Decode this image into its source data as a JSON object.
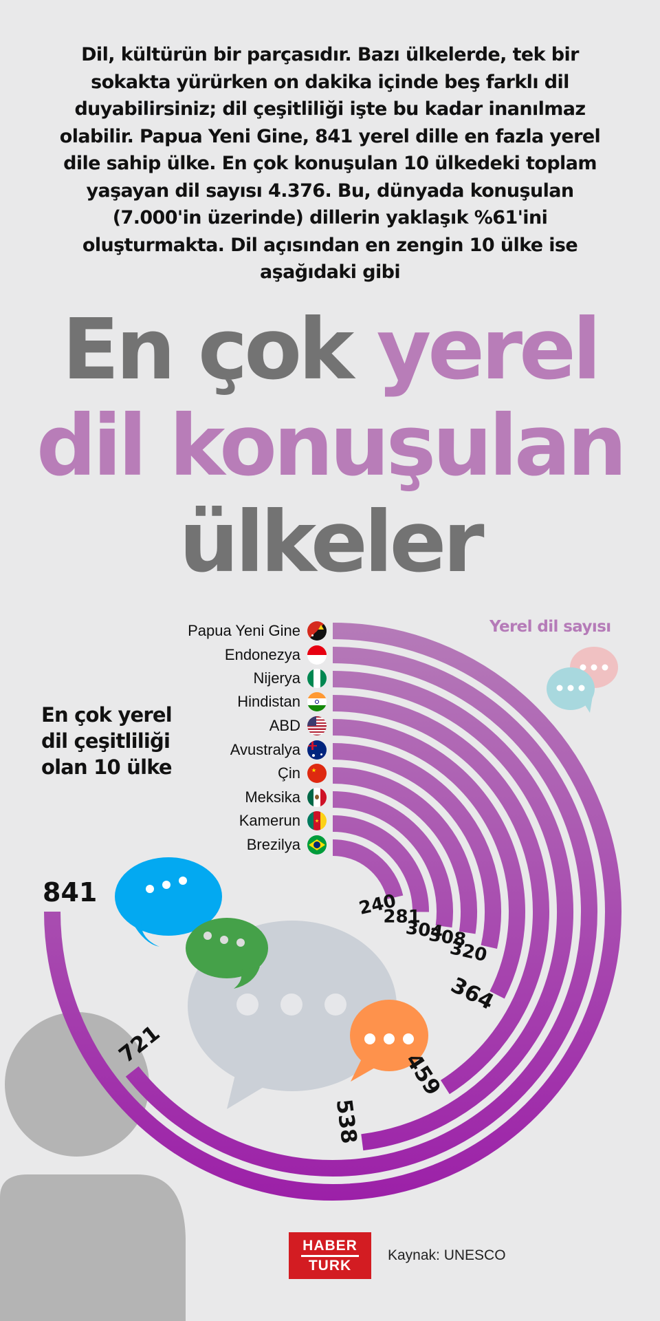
{
  "intro": {
    "text": "Dil, kültürün bir parçasıdır.  Bazı ülkelerde, tek bir sokakta yürürken on dakika içinde beş farklı dil duyabilirsiniz; dil çeşitliliği işte bu kadar inanılmaz olabilir. Papua Yeni Gine, 841 yerel dille en fazla yerel dile sahip ülke. En çok konuşulan 10 ülkedeki toplam yaşayan dil sayısı 4.376. Bu, dünyada konuşulan (7.000'in üzerinde) dillerin yaklaşık %61'ini oluşturmakta. Dil açısından en zengin 10 ülke ise aşağıdaki gibi"
  },
  "title": {
    "line1_gray": "En çok",
    "line1_pink": "yerel",
    "line2_pink": "dil konuşulan",
    "line3_gray": "ülkeler"
  },
  "side_heading": {
    "line1": "En çok yerel",
    "line2": "dil çeşitliliği",
    "line3": "olan 10 ülke"
  },
  "legend_title": "Yerel dil sayısı",
  "colors": {
    "background": "#e9e9ea",
    "title_gray": "#737373",
    "title_pink": "#b87db8",
    "arc_top": "#b57bb8",
    "arc_bottom": "#9c20a8",
    "logo_red": "#d31c22"
  },
  "chart_data": {
    "type": "radial-bar",
    "title": "En çok yerel dil çeşitliliği olan 10 ülke",
    "value_label": "Yerel dil sayısı",
    "categories": [
      "Papua Yeni Gine",
      "Endonezya",
      "Nijerya",
      "Hindistan",
      "ABD",
      "Avustralya",
      "Çin",
      "Meksika",
      "Kamerun",
      "Brezilya"
    ],
    "values": [
      841,
      721,
      538,
      459,
      364,
      320,
      308,
      304,
      281,
      240
    ],
    "flags": [
      "papua-new-guinea",
      "indonesia",
      "nigeria",
      "india",
      "usa",
      "australia",
      "china",
      "mexico",
      "cameroon",
      "brazil"
    ],
    "max_angle_deg": 270
  },
  "footer": {
    "logo_line1": "HABER",
    "logo_line2": "TURK",
    "source": "Kaynak: UNESCO"
  }
}
